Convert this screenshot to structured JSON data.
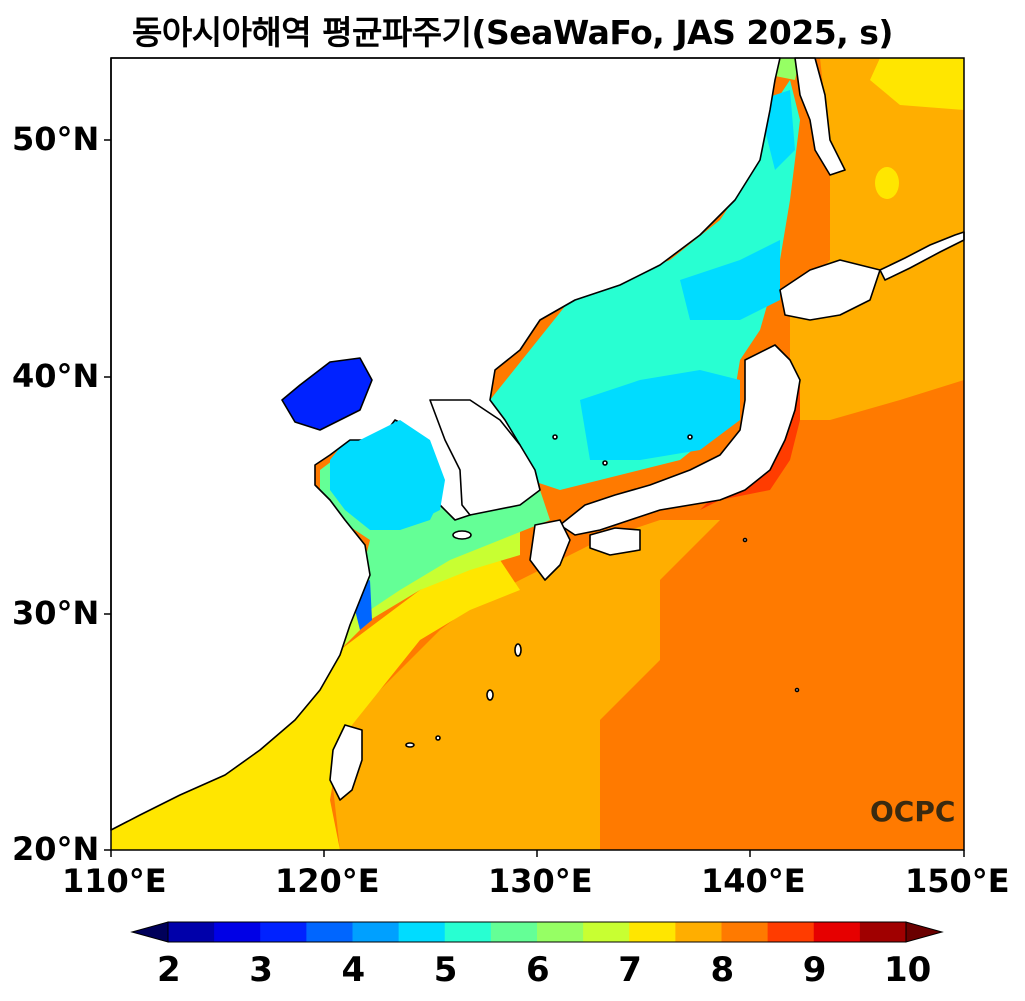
{
  "title": "동아시아해역 평균파주기(SeaWaFo, JAS 2025, s)",
  "lat_ticks": [
    "50°N",
    "40°N",
    "30°N",
    "20°N"
  ],
  "lon_ticks": [
    "110°E",
    "120°E",
    "130°E",
    "140°E",
    "150°E"
  ],
  "map_extent": {
    "lon_min": 110,
    "lon_max": 150,
    "lat_min": 20,
    "lat_max": 53.5
  },
  "colorbar": {
    "labels": [
      "2",
      "3",
      "4",
      "5",
      "6",
      "7",
      "8",
      "9",
      "10"
    ],
    "min": 2,
    "max": 10,
    "step": 0.5,
    "colors": [
      "#0000aa",
      "#0000e6",
      "#0022ff",
      "#0066ff",
      "#00a0ff",
      "#00dcff",
      "#28ffd2",
      "#64ff96",
      "#96ff64",
      "#c8ff32",
      "#ffe600",
      "#ffae00",
      "#ff7a00",
      "#ff3c00",
      "#e60000",
      "#a00000"
    ],
    "extend_low": "#00005a",
    "extend_high": "#6a0000"
  },
  "logo": "OCPC",
  "land_color": "#ffffff"
}
